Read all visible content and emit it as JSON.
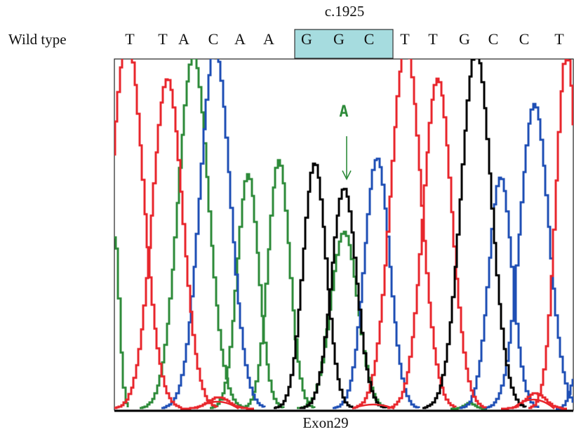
{
  "position_label": "c.1925",
  "row_label": "Wild type",
  "sequence": [
    "T",
    "T",
    "A",
    "C",
    "A",
    "A",
    "G",
    "G",
    "C",
    "T",
    "T",
    "G",
    "C",
    "C",
    "T"
  ],
  "highlight": {
    "bases": [
      6,
      8
    ],
    "color": "#a6dcdf"
  },
  "mutation": {
    "base": "A",
    "color": "#2e8b3a",
    "near_base_index": 7
  },
  "exon_label": "Exon29",
  "trace_colors": {
    "T": "#e8262c",
    "A": "#2e8b3a",
    "C": "#1f4fb5",
    "G": "#000000"
  }
}
